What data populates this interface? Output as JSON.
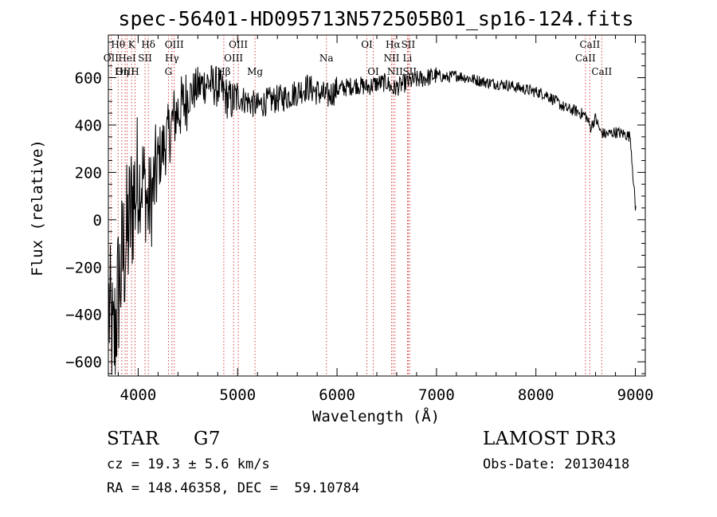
{
  "chart_data": {
    "type": "line",
    "title": "spec-56401-HD095713N572505B01_sp16-124.fits",
    "xlabel": "Wavelength (Å)",
    "ylabel": "Flux (relative)",
    "xlim": [
      3700,
      9100
    ],
    "ylim": [
      -660,
      780
    ],
    "xticks": [
      4000,
      5000,
      6000,
      7000,
      8000,
      9000
    ],
    "yticks": [
      -600,
      -400,
      -200,
      0,
      200,
      400,
      600
    ],
    "series": [
      {
        "name": "flux",
        "x": [
          3700,
          3750,
          3800,
          3850,
          3900,
          3950,
          4000,
          4050,
          4100,
          4150,
          4200,
          4250,
          4300,
          4350,
          4400,
          4450,
          4500,
          4600,
          4700,
          4800,
          4850,
          4900,
          4950,
          5000,
          5100,
          5200,
          5300,
          5400,
          5500,
          5600,
          5700,
          5800,
          5900,
          6000,
          6100,
          6200,
          6300,
          6400,
          6500,
          6563,
          6600,
          6700,
          6800,
          6900,
          7000,
          7100,
          7200,
          7300,
          7400,
          7500,
          7600,
          7700,
          7800,
          7900,
          8000,
          8100,
          8200,
          8300,
          8400,
          8500,
          8550,
          8600,
          8650,
          8700,
          8800,
          8900,
          8950,
          9000
        ],
        "y": [
          -350,
          -560,
          -300,
          -150,
          -50,
          100,
          150,
          180,
          50,
          120,
          250,
          300,
          350,
          420,
          460,
          480,
          520,
          560,
          580,
          560,
          540,
          510,
          500,
          520,
          500,
          480,
          500,
          510,
          520,
          540,
          560,
          540,
          520,
          550,
          560,
          570,
          560,
          575,
          580,
          550,
          560,
          580,
          590,
          600,
          610,
          600,
          610,
          600,
          590,
          580,
          575,
          570,
          560,
          550,
          540,
          530,
          500,
          470,
          460,
          440,
          390,
          430,
          370,
          360,
          370,
          360,
          350,
          50
        ]
      }
    ],
    "spectral_lines": [
      {
        "label": "Hθ",
        "x": 3798,
        "row": 1
      },
      {
        "label": "OII",
        "x": 3727,
        "row": 2
      },
      {
        "label": "OIII",
        "x": 3869,
        "row": 3
      },
      {
        "label": "K",
        "x": 3934,
        "row": 1
      },
      {
        "label": "HeI",
        "x": 3889,
        "row": 2
      },
      {
        "label": "Hη",
        "x": 3835,
        "row": 3
      },
      {
        "label": "Hδ",
        "x": 4102,
        "row": 1
      },
      {
        "label": "SII",
        "x": 4069,
        "row": 2
      },
      {
        "label": "H",
        "x": 3968,
        "row": 3
      },
      {
        "label": "OIII",
        "x": 4363,
        "row": 1
      },
      {
        "label": "Hγ",
        "x": 4340,
        "row": 2
      },
      {
        "label": "G",
        "x": 4304,
        "row": 3
      },
      {
        "label": "OIII",
        "x": 5007,
        "row": 1
      },
      {
        "label": "OIII",
        "x": 4959,
        "row": 2
      },
      {
        "label": "Hβ",
        "x": 4861,
        "row": 3
      },
      {
        "label": "Mg",
        "x": 5175,
        "row": 3
      },
      {
        "label": "Na",
        "x": 5893,
        "row": 2
      },
      {
        "label": "OI",
        "x": 6300,
        "row": 1
      },
      {
        "label": "OI",
        "x": 6364,
        "row": 3
      },
      {
        "label": "Hα",
        "x": 6563,
        "row": 1
      },
      {
        "label": "SII",
        "x": 6716,
        "row": 1
      },
      {
        "label": "NII",
        "x": 6548,
        "row": 2
      },
      {
        "label": "Li",
        "x": 6708,
        "row": 2
      },
      {
        "label": "NII",
        "x": 6583,
        "row": 3
      },
      {
        "label": "SII",
        "x": 6731,
        "row": 3
      },
      {
        "label": "CaII",
        "x": 8542,
        "row": 1
      },
      {
        "label": "CaII",
        "x": 8498,
        "row": 2
      },
      {
        "label": "CaII",
        "x": 8662,
        "row": 3
      }
    ]
  },
  "info": {
    "object_class": "STAR",
    "subclass": "G7",
    "redshift_line": "cz = 19.3 ± 5.6 km/s",
    "coords_line": "RA = 148.46358, DEC =  59.10784",
    "survey": "LAMOST DR3",
    "obs_date": "Obs-Date: 20130418"
  }
}
